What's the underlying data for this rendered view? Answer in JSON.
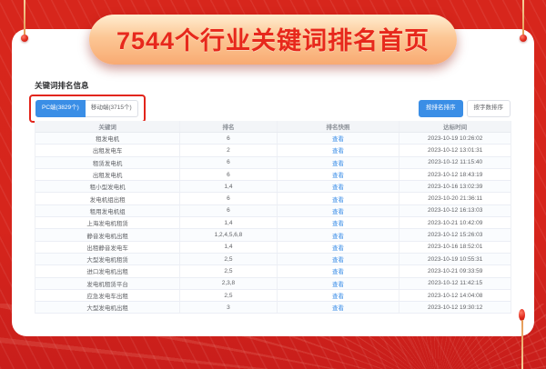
{
  "banner": {
    "title": "7544个行业关键词排名首页"
  },
  "panel": {
    "section_title": "关键词排名信息",
    "tabs": [
      {
        "label": "PC端(3829个)",
        "active": true
      },
      {
        "label": "移动端(3715个)",
        "active": false
      }
    ],
    "sort_buttons": [
      {
        "label": "按排名排序",
        "active": true
      },
      {
        "label": "按字数排序",
        "active": false
      }
    ]
  },
  "table": {
    "headers": [
      "关键词",
      "排名",
      "排名快照",
      "达标时间"
    ],
    "view_label": "查看",
    "rows": [
      {
        "keyword": "租发电机",
        "rank": "6",
        "time": "2023-10-19 10:26:02"
      },
      {
        "keyword": "出租发电车",
        "rank": "2",
        "time": "2023-10-12 13:01:31"
      },
      {
        "keyword": "租赁发电机",
        "rank": "6",
        "time": "2023-10-12 11:15:40"
      },
      {
        "keyword": "出租发电机",
        "rank": "6",
        "time": "2023-10-12 18:43:19"
      },
      {
        "keyword": "租小型发电机",
        "rank": "1,4",
        "time": "2023-10-16 13:02:39"
      },
      {
        "keyword": "发电机组出租",
        "rank": "6",
        "time": "2023-10-20 21:36:11"
      },
      {
        "keyword": "租用发电机组",
        "rank": "6",
        "time": "2023-10-12 16:13:03"
      },
      {
        "keyword": "上海发电机租赁",
        "rank": "1,4",
        "time": "2023-10-21 10:42:09"
      },
      {
        "keyword": "静音发电机出租",
        "rank": "1,2,4,5,6,8",
        "time": "2023-10-12 15:26:03"
      },
      {
        "keyword": "出租静音发电车",
        "rank": "1,4",
        "time": "2023-10-16 18:52:01"
      },
      {
        "keyword": "大型发电机租赁",
        "rank": "2,5",
        "time": "2023-10-19 10:55:31"
      },
      {
        "keyword": "进口发电机出租",
        "rank": "2,5",
        "time": "2023-10-21 09:33:59"
      },
      {
        "keyword": "发电机租赁平台",
        "rank": "2,3,8",
        "time": "2023-10-12 11:42:15"
      },
      {
        "keyword": "应急发电车出租",
        "rank": "2,5",
        "time": "2023-10-12 14:04:08"
      },
      {
        "keyword": "大型发电机出租",
        "rank": "3",
        "time": "2023-10-12 19:30:12"
      }
    ]
  },
  "colors": {
    "brand_red": "#d6251c",
    "annotation_red": "#e2251b",
    "primary_blue": "#3a8ee6",
    "link_blue": "#3d8fe8",
    "banner_text_red": "#e7281c"
  }
}
